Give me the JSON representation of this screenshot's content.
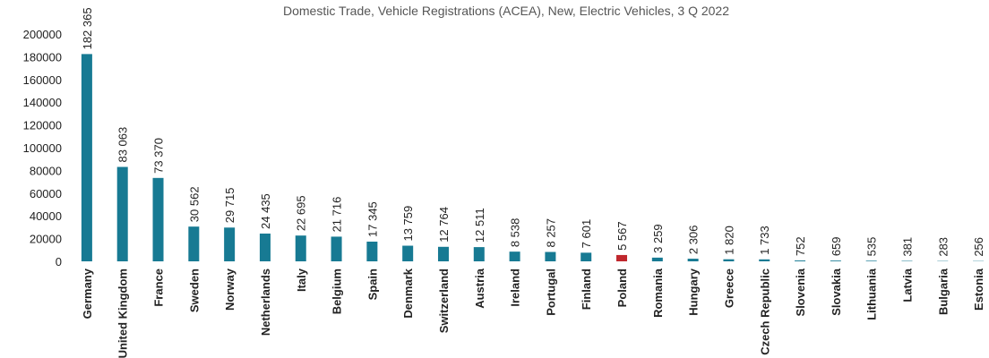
{
  "chart_data": {
    "type": "bar",
    "title": "Domestic Trade, Vehicle Registrations (ACEA), New, Electric Vehicles, 3 Q 2022",
    "categories": [
      "Germany",
      "United Kingdom",
      "France",
      "Sweden",
      "Norway",
      "Netherlands",
      "Italy",
      "Belgium",
      "Spain",
      "Denmark",
      "Switzerland",
      "Austria",
      "Ireland",
      "Portugal",
      "Finland",
      "Poland",
      "Romania",
      "Hungary",
      "Greece",
      "Czech Republic",
      "Slovenia",
      "Slovakia",
      "Lithuania",
      "Latvia",
      "Bulgaria",
      "Estonia"
    ],
    "values": [
      182365,
      83063,
      73370,
      30562,
      29715,
      24435,
      22695,
      21716,
      17345,
      13759,
      12764,
      12511,
      8538,
      8257,
      7601,
      5567,
      3259,
      2306,
      1820,
      1733,
      752,
      659,
      535,
      381,
      283,
      256
    ],
    "value_labels": [
      "182 365",
      "83 063",
      "73 370",
      "30 562",
      "29 715",
      "24 435",
      "22 695",
      "21 716",
      "17 345",
      "13 759",
      "12 764",
      "12 511",
      "8 538",
      "8 257",
      "7 601",
      "5 567",
      "3 259",
      "2 306",
      "1 820",
      "1 733",
      "752",
      "659",
      "535",
      "381",
      "283",
      "256"
    ],
    "colors": [
      "#177a93",
      "#177a93",
      "#177a93",
      "#177a93",
      "#177a93",
      "#177a93",
      "#177a93",
      "#177a93",
      "#177a93",
      "#177a93",
      "#177a93",
      "#177a93",
      "#177a93",
      "#177a93",
      "#177a93",
      "#c0272d",
      "#177a93",
      "#177a93",
      "#177a93",
      "#177a93",
      "#177a93",
      "#177a93",
      "#177a93",
      "#177a93",
      "#177a93",
      "#177a93"
    ],
    "ylim": [
      0,
      200000
    ],
    "yticks": [
      0,
      20000,
      40000,
      60000,
      80000,
      100000,
      120000,
      140000,
      160000,
      180000,
      200000
    ],
    "grid": false
  }
}
